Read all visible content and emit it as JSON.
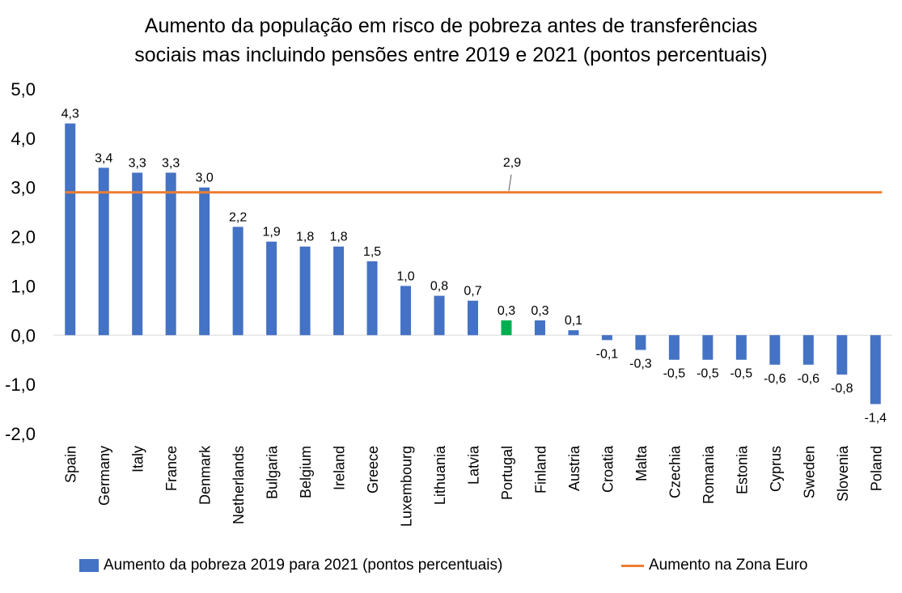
{
  "chart_data": {
    "type": "bar",
    "title_line1": "Aumento da população em risco de pobreza antes de transferências",
    "title_line2": "sociais mas incluindo pensões entre 2019 e 2021 (pontos percentuais)",
    "categories": [
      "Spain",
      "Germany",
      "Italy",
      "France",
      "Denmark",
      "Netherlands",
      "Bulgaria",
      "Belgium",
      "Ireland",
      "Greece",
      "Luxembourg",
      "Lithuania",
      "Latvia",
      "Portugal",
      "Finland",
      "Austria",
      "Croatia",
      "Malta",
      "Czechia",
      "Romania",
      "Estonia",
      "Cyprus",
      "Sweden",
      "Slovenia",
      "Poland"
    ],
    "series": [
      {
        "name": "Aumento da pobreza 2019 para 2021 (pontos percentuais)",
        "values": [
          4.3,
          3.4,
          3.3,
          3.3,
          3.0,
          2.2,
          1.9,
          1.8,
          1.8,
          1.5,
          1.0,
          0.8,
          0.7,
          0.3,
          0.3,
          0.1,
          -0.1,
          -0.3,
          -0.5,
          -0.5,
          -0.5,
          -0.6,
          -0.6,
          -0.8,
          -1.4
        ],
        "labels": [
          "4,3",
          "3,4",
          "3,3",
          "3,3",
          "3,0",
          "2,2",
          "1,9",
          "1,8",
          "1,8",
          "1,5",
          "1,0",
          "0,8",
          "0,7",
          "0,3",
          "0,3",
          "0,1",
          "-0,1",
          "-0,3",
          "-0,5",
          "-0,5",
          "-0,5",
          "-0,6",
          "-0,6",
          "-0,8",
          "-1,4"
        ]
      },
      {
        "name": "Aumento na Zona Euro",
        "value": 2.9,
        "label": "2,9"
      }
    ],
    "highlight_category": "Portugal",
    "ylim": [
      -2.0,
      5.0
    ],
    "yticks": [
      5.0,
      4.0,
      3.0,
      2.0,
      1.0,
      0.0,
      -1.0,
      -2.0
    ],
    "ytick_labels": [
      "5,0",
      "4,0",
      "3,0",
      "2,0",
      "1,0",
      "0,0",
      "-1,0",
      "-2,0"
    ],
    "grid": false,
    "legend_position": "bottom",
    "colors": {
      "bar": "#4472c4",
      "highlight": "#00b050",
      "line": "#ed7d31",
      "axis": "#d9d9d9"
    }
  }
}
